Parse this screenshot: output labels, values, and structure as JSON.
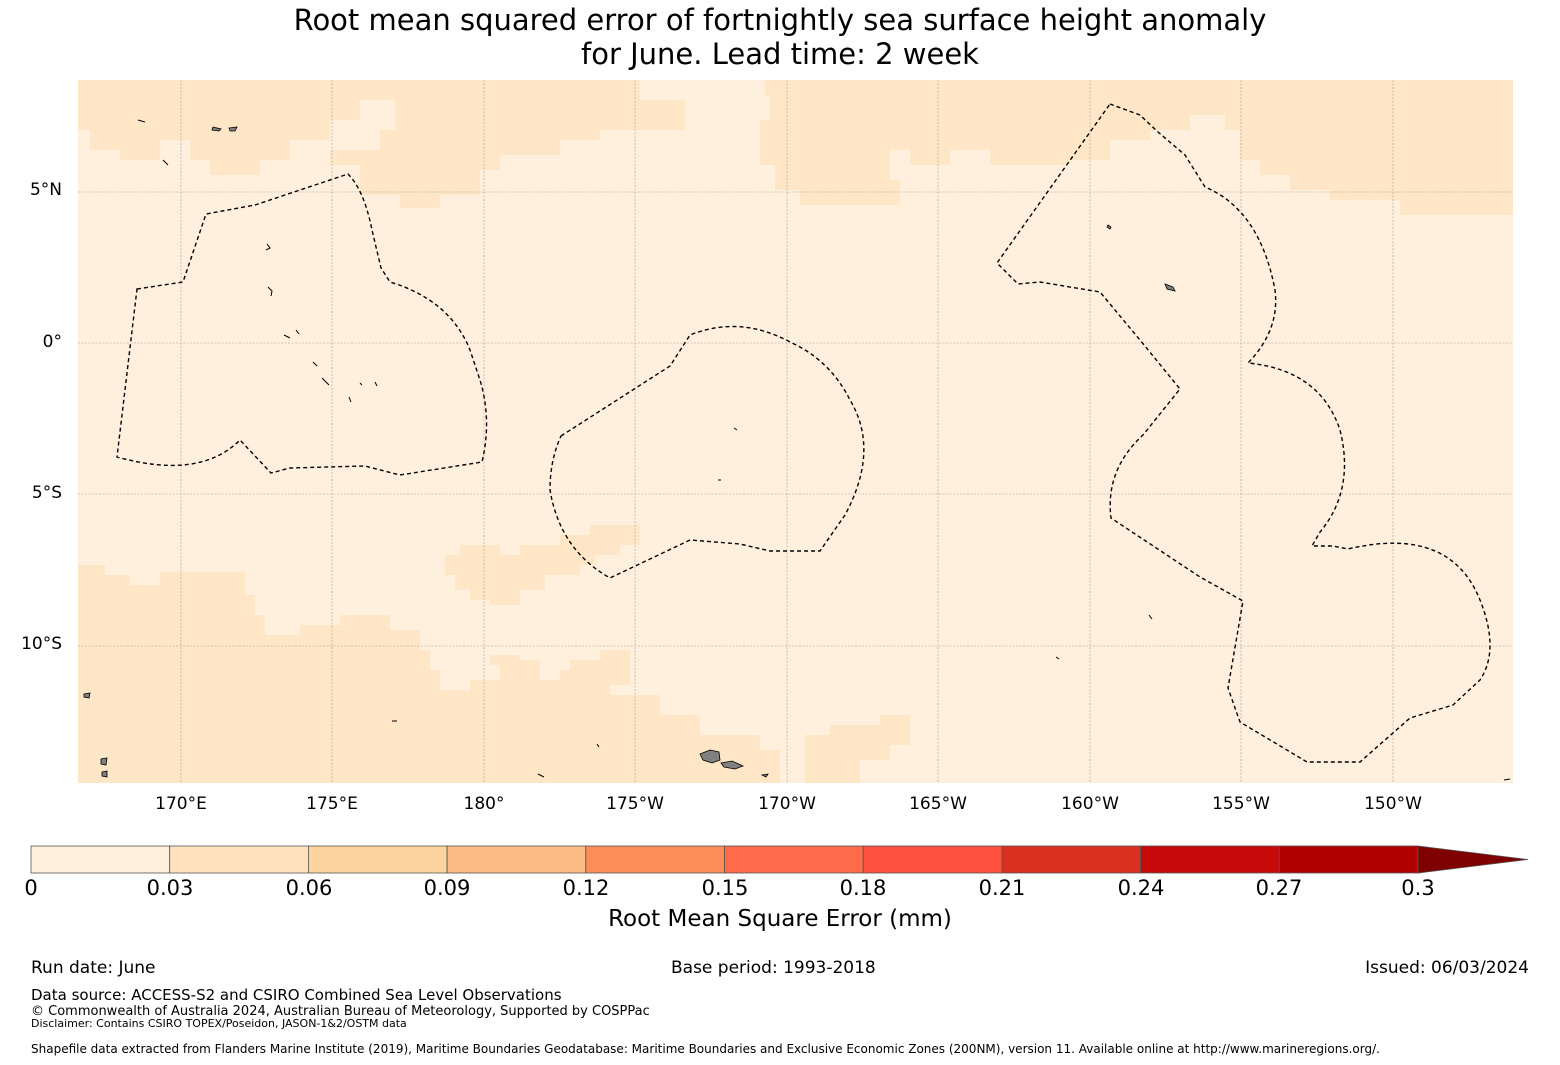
{
  "title_line1": "Root mean squared error of fortnightly sea surface height anomaly",
  "title_line2": "for June. Lead time: 2 week",
  "map": {
    "latitude_labels": [
      "5°N",
      "0°",
      "5°S",
      "10°S"
    ],
    "longitude_labels": [
      "170°E",
      "175°E",
      "180°",
      "175°W",
      "170°W",
      "165°W",
      "160°W",
      "155°W",
      "150°W"
    ],
    "land_color": "#808080",
    "boundary_style": "dashed black"
  },
  "colorbar": {
    "ticks": [
      "0",
      "0.03",
      "0.06",
      "0.09",
      "0.12",
      "0.15",
      "0.18",
      "0.21",
      "0.24",
      "0.27",
      "0.3"
    ],
    "colors": [
      "#fff0dd",
      "#ffe3c0",
      "#fdd49e",
      "#fdbb84",
      "#fc8d59",
      "#ff6a4a",
      "#ff5040",
      "#d93020",
      "#c80a0a",
      "#b00000"
    ],
    "extend_color": "#7f0000",
    "label": "Root Mean Square Error (mm)"
  },
  "footer": {
    "run_date": "Run date: June",
    "base_period": "Base period: 1993-2018",
    "issued": "Issued: 06/03/2024",
    "data_source": "Data source: ACCESS-S2 and CSIRO Combined Sea Level Observations",
    "copyright": "© Commonwealth of Australia 2024, Australian Bureau of Meteorology, Supported by COSPPac",
    "disclaimer": "Disclaimer: Contains CSIRO TOPEX/Poseidon, JASON-1&2/OSTM data",
    "shapefile": "Shapefile data extracted from Flanders Marine Institute (2019), Maritime Boundaries Geodatabase: Maritime Boundaries and Exclusive Economic Zones (200NM), version 11. Available online at http://www.marineregions.org/."
  }
}
